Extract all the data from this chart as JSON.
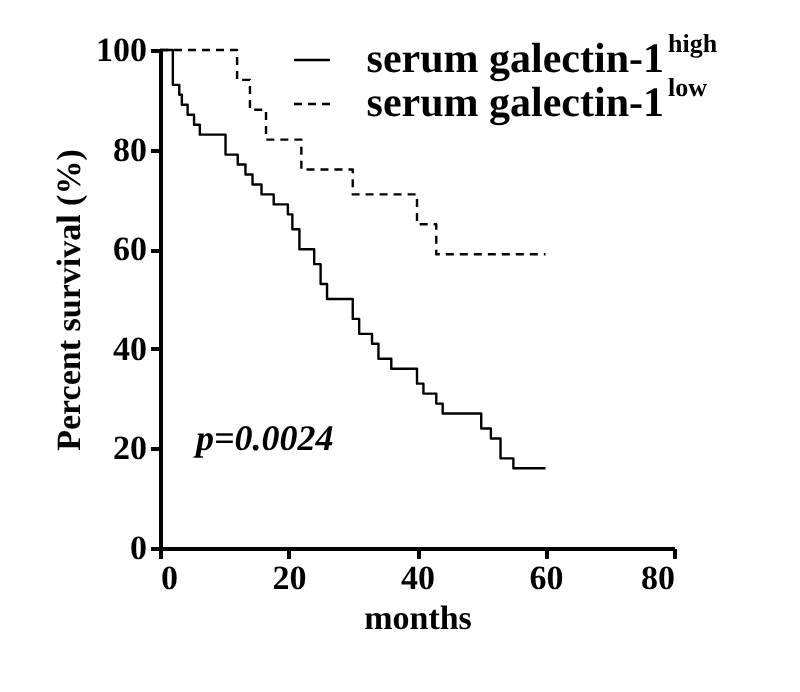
{
  "chart_data": {
    "type": "step",
    "xlabel": "months",
    "ylabel": "Percent survival (%)",
    "xlim": [
      0,
      80
    ],
    "xticks": [
      0,
      20,
      40,
      60,
      80
    ],
    "ylim": [
      0,
      100
    ],
    "yticks": [
      0,
      20,
      40,
      60,
      80,
      100
    ],
    "grid": false,
    "legend": "top right",
    "marker": "none",
    "annotations": [
      "p=0.0024"
    ],
    "series": [
      {
        "name": "serum galectin-1$^{high}$",
        "color": "#000000",
        "line_style": "solid",
        "x": [
          0,
          2,
          3,
          3.4,
          4.3,
          5.3,
          6.2,
          10.2,
          12.1,
          13.3,
          14.4,
          15.8,
          17.7,
          19.9,
          20.6,
          21.7,
          24,
          25,
          26,
          30,
          31,
          33,
          34,
          36,
          40,
          41,
          43,
          44,
          50,
          51.5,
          53,
          55,
          60
        ],
        "values": [
          100,
          93,
          91,
          89,
          87,
          85,
          83,
          79,
          77,
          75,
          73,
          71,
          69,
          67,
          64,
          60,
          57,
          53,
          50,
          46,
          43,
          41,
          38,
          36,
          33,
          31,
          29,
          27,
          24,
          22,
          18,
          16,
          16
        ]
      },
      {
        "name": "serum galectin-1$^{low}$",
        "color": "#000000",
        "line_style": "dashed",
        "x": [
          0,
          12,
          14,
          16.5,
          22,
          30,
          40,
          43,
          60
        ],
        "values": [
          100,
          94,
          88,
          82,
          76,
          71,
          65,
          59,
          59
        ]
      }
    ]
  }
}
